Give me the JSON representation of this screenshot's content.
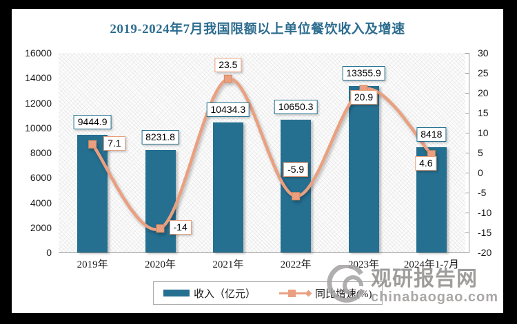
{
  "title": "2019-2024年7月我国限额以上单位餐饮收入及增速",
  "legend": {
    "revenue": "收入（亿元）",
    "growth": "同比增速(%)"
  },
  "watermark": {
    "site_name": "观研报告网",
    "site_domain": "chinabaogao.com"
  },
  "colors": {
    "bar": "#256f90",
    "line": "#eaa080",
    "bar_label_border": "#1f6f8f",
    "line_label_border": "#e8a07c",
    "title": "#2d6d8f",
    "axis": "#9a9a9a",
    "watermark_gray": "#8f8d8b"
  },
  "chart_data": {
    "type": "combo-bar-line",
    "title": "2019-2024年7月我国限额以上单位餐饮收入及增速",
    "categories": [
      "2019年",
      "2020年",
      "2021年",
      "2022年",
      "2023年",
      "2024年1-7月"
    ],
    "series": [
      {
        "name": "收入（亿元）",
        "type": "bar",
        "axis": "left",
        "values": [
          9444.9,
          8231.8,
          10434.3,
          10650.3,
          13355.9,
          8418
        ],
        "labels": [
          "9444.9",
          "8231.8",
          "10434.3",
          "10650.3",
          "13355.9",
          "8418"
        ]
      },
      {
        "name": "同比增速(%)",
        "type": "line",
        "axis": "right",
        "values": [
          7.1,
          -14,
          23.5,
          -5.9,
          20.9,
          4.6
        ],
        "labels": [
          "7.1",
          "-14",
          "23.5",
          "-5.9",
          "20.9",
          "4.6"
        ]
      }
    ],
    "left_axis": {
      "min": 0,
      "max": 16000,
      "step": 2000,
      "tick_labels": [
        "16000",
        "14000",
        "12000",
        "10000",
        "8000",
        "6000",
        "4000",
        "2000",
        "0"
      ]
    },
    "right_axis": {
      "min": -20,
      "max": 30,
      "step": 5,
      "tick_labels": [
        "30",
        "25",
        "20",
        "15",
        "10",
        "5",
        "0",
        "-5",
        "-10",
        "-15",
        "-20"
      ]
    },
    "grid": false,
    "legend_position": "bottom",
    "plot_background": "diagonal-hatch"
  }
}
